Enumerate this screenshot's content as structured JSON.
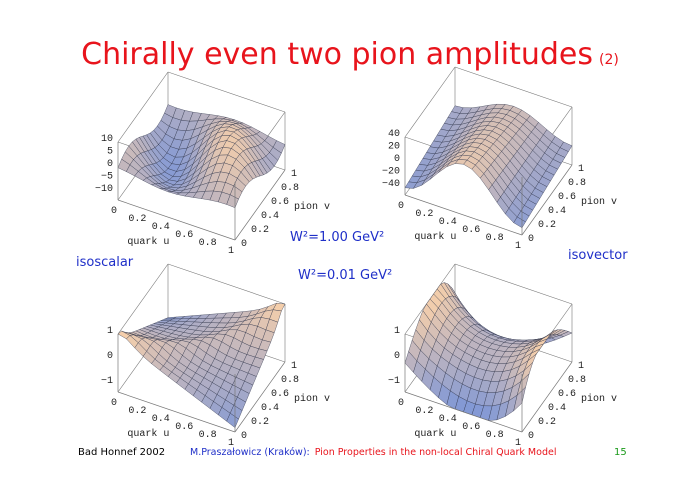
{
  "title": {
    "main": "Chirally even two pion amplitudes",
    "suffix": "(2)"
  },
  "annotations": {
    "w_high": "W²=1.00 GeV²",
    "w_low": "W²=0.01 GeV²",
    "isoscalar": "isoscalar",
    "isovector": "isovector"
  },
  "plots": [
    {
      "z_ticks": [
        "10",
        "5",
        "0",
        "−5",
        "−10"
      ],
      "u_ticks": [
        "0",
        "0.2",
        "0.4",
        "0.6",
        "0.8",
        "1"
      ],
      "v_ticks": [
        "0",
        "0.2",
        "0.4",
        "0.6",
        "0.8",
        "1"
      ],
      "u_label": "quark u",
      "v_label": "pion v"
    },
    {
      "z_ticks": [
        "40",
        "20",
        "0",
        "−20",
        "−40"
      ],
      "u_ticks": [
        "0",
        "0.2",
        "0.4",
        "0.6",
        "0.8",
        "1"
      ],
      "v_ticks": [
        "0",
        "0.2",
        "0.4",
        "0.6",
        "0.8",
        "1"
      ],
      "u_label": "quark u",
      "v_label": "pion v"
    },
    {
      "z_ticks": [
        "1",
        "0",
        "−1"
      ],
      "u_ticks": [
        "0",
        "0.2",
        "0.4",
        "0.6",
        "0.8",
        "1"
      ],
      "v_ticks": [
        "0",
        "0.2",
        "0.4",
        "0.6",
        "0.8",
        "1"
      ],
      "u_label": "quark u",
      "v_label": "pion v"
    },
    {
      "z_ticks": [
        "1",
        "0",
        "−1"
      ],
      "u_ticks": [
        "0",
        "0.2",
        "0.4",
        "0.6",
        "0.8",
        "1"
      ],
      "v_ticks": [
        "0",
        "0.2",
        "0.4",
        "0.6",
        "0.8",
        "1"
      ],
      "u_label": "quark u",
      "v_label": "pion v"
    }
  ],
  "footer": {
    "venue": "Bad Honnef 2002",
    "author": "M.Praszałowicz (Kraków):",
    "talk": "Pion Properties in the non-local Chiral Quark Model",
    "page": "15"
  }
}
